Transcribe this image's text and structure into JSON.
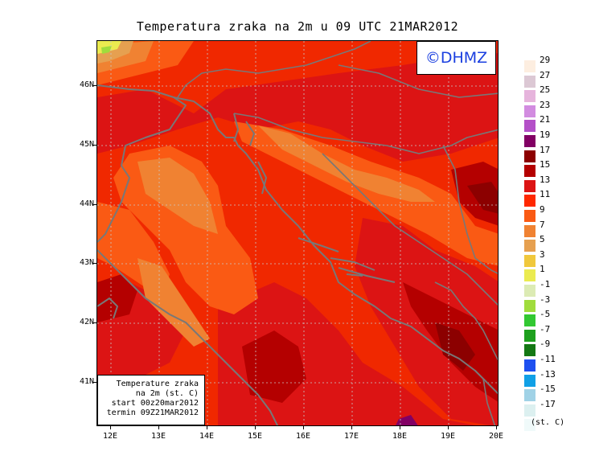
{
  "title": "Temperatura zraka na 2m u 09 UTC 21MAR2012",
  "logo": "©DHMZ",
  "info_box": {
    "line1": "Temperature zraka",
    "line2": "na 2m (st. C)",
    "line3": "start 00z20mar2012",
    "line4": "termin 09Z21MAR2012"
  },
  "lat_labels": [
    "46N",
    "45N",
    "44N",
    "43N",
    "42N",
    "41N"
  ],
  "lon_labels": [
    "12E",
    "13E",
    "14E",
    "15E",
    "16E",
    "17E",
    "18E",
    "19E",
    "20E"
  ],
  "legend": {
    "unit": "(st. C)",
    "entries": [
      {
        "label": "29",
        "color": "#fdeee0"
      },
      {
        "label": "27",
        "color": "#dcc8d4"
      },
      {
        "label": "25",
        "color": "#e6b4dc"
      },
      {
        "label": "23",
        "color": "#d28ce0"
      },
      {
        "label": "21",
        "color": "#b450c8"
      },
      {
        "label": "19",
        "color": "#820064"
      },
      {
        "label": "17",
        "color": "#8c0000"
      },
      {
        "label": "15",
        "color": "#b40000"
      },
      {
        "label": "13",
        "color": "#dc1414"
      },
      {
        "label": "11",
        "color": "#ff2800"
      },
      {
        "label": "9",
        "color": "#fa5a14"
      },
      {
        "label": "7",
        "color": "#f08232"
      },
      {
        "label": "5",
        "color": "#e6a050"
      },
      {
        "label": "3",
        "color": "#f0c83c"
      },
      {
        "label": "1",
        "color": "#ebeb50"
      },
      {
        "label": "-1",
        "color": "#dcebb4"
      },
      {
        "label": "-3",
        "color": "#a0dc3c"
      },
      {
        "label": "-5",
        "color": "#32c832"
      },
      {
        "label": "-7",
        "color": "#1ea01e"
      },
      {
        "label": "-9",
        "color": "#147814"
      },
      {
        "label": "-11",
        "color": "#1e50f0"
      },
      {
        "label": "-13",
        "color": "#10a0e6"
      },
      {
        "label": "-15",
        "color": "#a0d2e6"
      },
      {
        "label": "-17",
        "color": "#dcf0f0"
      },
      {
        "label": "",
        "color": "#f0fafa"
      }
    ]
  },
  "colors": {
    "sea_base": "#f02800",
    "coast": "#787878",
    "grid": "#c8c8c8"
  }
}
